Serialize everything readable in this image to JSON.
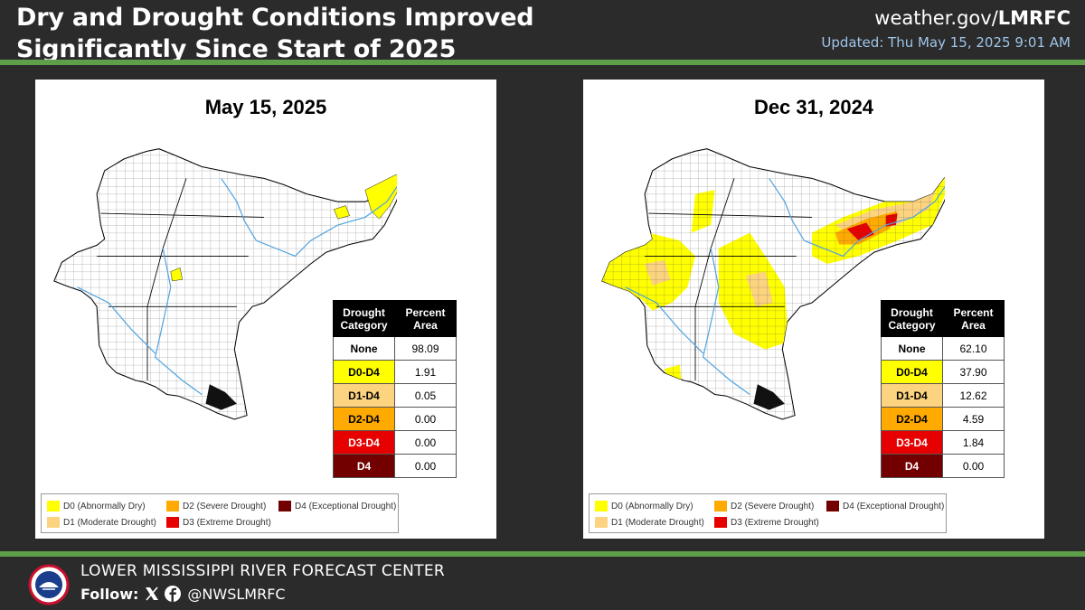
{
  "header": {
    "title_line1": "Dry and Drought Conditions Improved",
    "title_line2": "Significantly Since Start of 2025",
    "site_prefix": "weather.gov/",
    "site_suffix": "LMRFC",
    "updated": "Updated: Thu May 15, 2025 9:01 AM"
  },
  "table_headers": {
    "category": "Drought Category",
    "percent": "Percent Area"
  },
  "maps": [
    {
      "title": "May 15, 2025",
      "rows": [
        {
          "category": "None",
          "value": "98.09",
          "color": "#ffffff",
          "text_color": "#000000"
        },
        {
          "category": "D0-D4",
          "value": "1.91",
          "color": "#ffff00",
          "text_color": "#000000"
        },
        {
          "category": "D1-D4",
          "value": "0.05",
          "color": "#fcd37f",
          "text_color": "#000000"
        },
        {
          "category": "D2-D4",
          "value": "0.00",
          "color": "#ffaa00",
          "text_color": "#000000"
        },
        {
          "category": "D3-D4",
          "value": "0.00",
          "color": "#e60000",
          "text_color": "#ffffff"
        },
        {
          "category": "D4",
          "value": "0.00",
          "color": "#730000",
          "text_color": "#ffffff"
        }
      ]
    },
    {
      "title": "Dec 31, 2024",
      "rows": [
        {
          "category": "None",
          "value": "62.10",
          "color": "#ffffff",
          "text_color": "#000000"
        },
        {
          "category": "D0-D4",
          "value": "37.90",
          "color": "#ffff00",
          "text_color": "#000000"
        },
        {
          "category": "D1-D4",
          "value": "12.62",
          "color": "#fcd37f",
          "text_color": "#000000"
        },
        {
          "category": "D2-D4",
          "value": "4.59",
          "color": "#ffaa00",
          "text_color": "#000000"
        },
        {
          "category": "D3-D4",
          "value": "1.84",
          "color": "#e60000",
          "text_color": "#ffffff"
        },
        {
          "category": "D4",
          "value": "0.00",
          "color": "#730000",
          "text_color": "#ffffff"
        }
      ]
    }
  ],
  "legend": [
    {
      "code": "D0",
      "desc": "(Abnormally Dry)",
      "color": "#ffff00"
    },
    {
      "code": "D1",
      "desc": "(Moderate Drought)",
      "color": "#fcd37f"
    },
    {
      "code": "D2",
      "desc": "(Severe Drought)",
      "color": "#ffaa00"
    },
    {
      "code": "D3",
      "desc": "(Extreme Drought)",
      "color": "#e60000"
    },
    {
      "code": "D4",
      "desc": "(Exceptional Drought)",
      "color": "#730000"
    }
  ],
  "footer": {
    "org": "LOWER MISSISSIPPI RIVER FORECAST CENTER",
    "follow": "Follow:",
    "handle": "@NWSLMRFC",
    "x_icon": "x-logo-icon",
    "facebook_icon": "facebook-icon",
    "logo": "nws-logo"
  },
  "colors": {
    "background": "#2b2b2b",
    "rule": "#5f9f4a",
    "updated_text": "#9fc4e8",
    "river": "#4fa3e0"
  }
}
